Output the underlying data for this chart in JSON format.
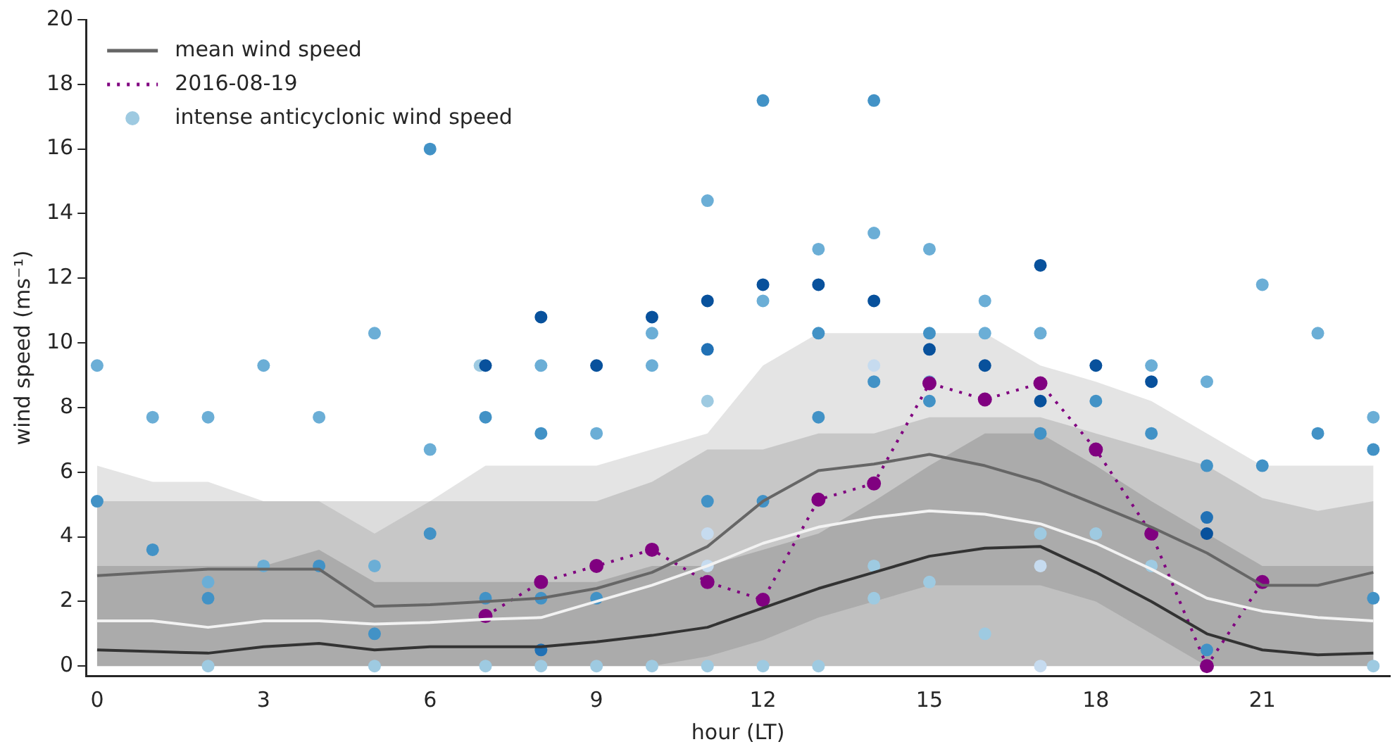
{
  "chart_data": {
    "type": "line",
    "xlabel": "hour (LT)",
    "ylabel": "wind speed (ms⁻¹)",
    "x": [
      0,
      1,
      2,
      3,
      4,
      5,
      6,
      7,
      8,
      9,
      10,
      11,
      12,
      13,
      14,
      15,
      16,
      17,
      18,
      19,
      20,
      21,
      22,
      23
    ],
    "xlim": [
      -0.2,
      23.3
    ],
    "xticks": [
      0,
      3,
      6,
      9,
      12,
      15,
      18,
      21
    ],
    "ylim": [
      -0.3,
      20
    ],
    "yticks": [
      0,
      2,
      4,
      6,
      8,
      10,
      12,
      14,
      16,
      18,
      20
    ],
    "grid": false,
    "legend": "top left",
    "marker": "none",
    "series": [
      {
        "color": "#f2f2f2",
        "values": [
          1.4,
          1.4,
          1.2,
          1.4,
          1.4,
          1.3,
          1.35,
          1.45,
          1.5,
          2.0,
          2.5,
          3.1,
          3.8,
          4.3,
          4.6,
          4.8,
          4.7,
          4.4,
          3.8,
          3.0,
          2.1,
          1.7,
          1.5,
          1.4
        ],
        "lower": [
          0,
          0,
          0,
          0,
          0,
          0,
          0,
          0,
          0,
          0,
          0,
          0,
          0,
          0,
          0,
          0,
          0,
          0,
          0,
          0,
          0,
          0,
          0,
          0
        ],
        "upper": [
          6.2,
          5.7,
          5.7,
          5.1,
          5.1,
          4.1,
          5.1,
          6.2,
          6.2,
          6.2,
          6.7,
          7.2,
          9.3,
          10.3,
          10.3,
          10.3,
          10.3,
          9.3,
          8.8,
          8.2,
          7.2,
          6.2,
          6.2,
          6.2
        ]
      },
      {
        "name": "mean wind speed",
        "color": "#666666",
        "values": [
          2.8,
          2.9,
          3.0,
          3.0,
          3.0,
          1.85,
          1.9,
          2.0,
          2.1,
          2.4,
          2.9,
          3.7,
          5.1,
          6.05,
          6.25,
          6.55,
          6.2,
          5.7,
          5.0,
          4.3,
          3.5,
          2.5,
          2.5,
          2.9
        ],
        "lower": [
          0,
          0,
          0,
          0,
          0,
          0,
          0,
          0,
          0,
          0,
          0,
          0.3,
          0.8,
          1.5,
          2.0,
          2.5,
          2.5,
          2.5,
          2.0,
          1.0,
          0,
          0,
          0,
          0
        ],
        "upper": [
          5.1,
          5.1,
          5.1,
          5.1,
          5.1,
          5.1,
          5.1,
          5.1,
          5.1,
          5.1,
          5.7,
          6.7,
          6.7,
          7.2,
          7.2,
          7.7,
          7.7,
          7.7,
          7.2,
          6.7,
          6.2,
          5.2,
          4.8,
          5.1
        ]
      },
      {
        "color": "#333333",
        "values": [
          0.5,
          0.45,
          0.4,
          0.6,
          0.7,
          0.5,
          0.6,
          0.6,
          0.6,
          0.75,
          0.95,
          1.2,
          1.8,
          2.4,
          2.9,
          3.4,
          3.65,
          3.7,
          2.9,
          2.0,
          1.0,
          0.5,
          0.35,
          0.4
        ],
        "lower": [
          0,
          0,
          0,
          0,
          0,
          0,
          0,
          0,
          0,
          0,
          0,
          0,
          0,
          0,
          0,
          0,
          0,
          0,
          0,
          0,
          0,
          0,
          0,
          0
        ],
        "upper": [
          3.1,
          3.1,
          3.1,
          3.1,
          3.6,
          2.6,
          2.6,
          2.6,
          2.6,
          2.6,
          3.1,
          3.1,
          3.6,
          4.1,
          5.1,
          6.2,
          7.2,
          7.2,
          6.2,
          5.1,
          4.1,
          3.1,
          3.1,
          3.1
        ]
      },
      {
        "name": "2016-08-19",
        "color": "#800080",
        "line_style": "dotted",
        "marker": "circle",
        "values": [
          null,
          null,
          null,
          null,
          null,
          null,
          null,
          1.55,
          2.6,
          3.1,
          3.6,
          2.6,
          2.05,
          5.15,
          5.65,
          8.75,
          8.25,
          8.75,
          6.7,
          4.1,
          0.0,
          2.6,
          null,
          null
        ]
      },
      {
        "name": "intense anticyclonic wind speed",
        "type": "scatter",
        "marker": "circle",
        "color": "#9ecae1",
        "x": [
          0,
          0,
          1,
          1,
          2,
          2,
          2,
          2,
          3,
          3,
          4,
          4,
          5,
          5,
          5,
          5,
          6,
          6,
          6,
          6.9,
          7,
          7,
          7,
          7,
          8,
          8,
          8,
          8,
          8,
          8,
          9,
          9,
          9,
          9,
          10,
          10,
          10,
          10,
          11,
          11,
          11,
          11,
          11,
          11,
          11,
          11,
          12,
          12,
          12,
          12,
          12,
          13,
          13,
          13,
          13,
          13,
          14,
          14,
          14,
          14,
          14,
          14,
          14,
          15,
          15,
          15,
          15,
          15,
          15,
          16,
          16,
          16,
          16,
          17,
          17,
          17,
          17,
          17,
          17,
          17,
          18,
          18,
          18,
          19,
          19,
          19,
          19,
          20,
          20,
          20,
          20,
          20,
          21,
          21,
          22,
          22,
          23,
          23,
          23,
          23
        ],
        "values": [
          9.3,
          5.1,
          7.7,
          3.6,
          7.7,
          2.6,
          2.1,
          0,
          9.3,
          3.1,
          7.7,
          3.1,
          10.3,
          3.1,
          1.0,
          0,
          16.0,
          6.7,
          4.1,
          9.3,
          9.3,
          7.7,
          2.1,
          0,
          10.8,
          9.3,
          7.2,
          2.1,
          0.5,
          0,
          9.3,
          7.2,
          2.1,
          0,
          10.8,
          10.3,
          9.3,
          0,
          14.4,
          11.3,
          9.8,
          8.2,
          5.1,
          4.1,
          3.1,
          0,
          17.5,
          11.8,
          11.3,
          5.1,
          0,
          12.9,
          11.8,
          10.3,
          7.7,
          0,
          17.5,
          13.4,
          11.3,
          9.3,
          8.8,
          3.1,
          2.1,
          12.9,
          10.3,
          9.8,
          8.8,
          8.2,
          2.6,
          11.3,
          10.3,
          9.3,
          1.0,
          12.4,
          10.3,
          8.2,
          7.2,
          4.1,
          3.1,
          0,
          9.3,
          8.2,
          4.1,
          9.3,
          8.8,
          7.2,
          3.1,
          8.8,
          6.2,
          4.6,
          4.1,
          0.5,
          11.8,
          6.2,
          10.3,
          7.2,
          7.7,
          6.7,
          2.1,
          0
        ],
        "colors": [
          "#6baed6",
          "#4292c6",
          "#6baed6",
          "#4292c6",
          "#6baed6",
          "#6baed6",
          "#4292c6",
          "#9ecae1",
          "#6baed6",
          "#6baed6",
          "#6baed6",
          "#4292c6",
          "#6baed6",
          "#6baed6",
          "#4292c6",
          "#9ecae1",
          "#4292c6",
          "#6baed6",
          "#4292c6",
          "#9ecae1",
          "#08519c",
          "#4292c6",
          "#4292c6",
          "#9ecae1",
          "#08519c",
          "#6baed6",
          "#4292c6",
          "#4292c6",
          "#2171b5",
          "#9ecae1",
          "#08519c",
          "#6baed6",
          "#4292c6",
          "#9ecae1",
          "#08519c",
          "#6baed6",
          "#6baed6",
          "#9ecae1",
          "#6baed6",
          "#08519c",
          "#2171b5",
          "#9ecae1",
          "#4292c6",
          "#c6dbef",
          "#c6dbef",
          "#9ecae1",
          "#4292c6",
          "#08519c",
          "#6baed6",
          "#4292c6",
          "#9ecae1",
          "#6baed6",
          "#08519c",
          "#4292c6",
          "#4292c6",
          "#9ecae1",
          "#4292c6",
          "#6baed6",
          "#08519c",
          "#c6dbef",
          "#4292c6",
          "#9ecae1",
          "#9ecae1",
          "#6baed6",
          "#4292c6",
          "#08519c",
          "#6baed6",
          "#4292c6",
          "#9ecae1",
          "#6baed6",
          "#6baed6",
          "#08519c",
          "#9ecae1",
          "#08519c",
          "#6baed6",
          "#08519c",
          "#4292c6",
          "#9ecae1",
          "#c6dbef",
          "#c6dbef",
          "#08519c",
          "#4292c6",
          "#9ecae1",
          "#6baed6",
          "#08519c",
          "#4292c6",
          "#9ecae1",
          "#6baed6",
          "#4292c6",
          "#2171b5",
          "#08519c",
          "#4292c6",
          "#6baed6",
          "#4292c6",
          "#6baed6",
          "#4292c6",
          "#6baed6",
          "#4292c6",
          "#4292c6",
          "#9ecae1"
        ]
      }
    ]
  }
}
